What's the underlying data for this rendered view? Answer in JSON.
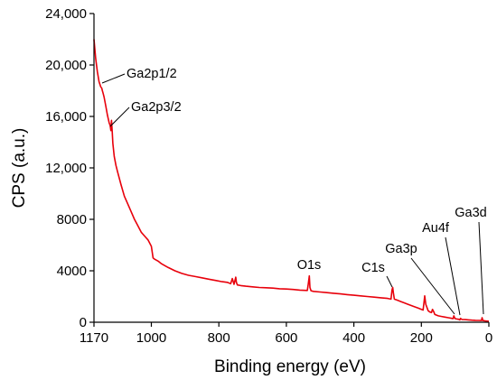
{
  "chart_data": {
    "type": "line",
    "title": "",
    "xlabel": "Binding energy (eV)",
    "ylabel": "CPS (a.u.)",
    "x_reversed": true,
    "xlim": [
      1170,
      0
    ],
    "ylim": [
      0,
      24000
    ],
    "grid": false,
    "legend": "none",
    "x_ticks": [
      {
        "value": 1170,
        "label": "1170"
      },
      {
        "value": 1000,
        "label": "1000"
      },
      {
        "value": 800,
        "label": "800"
      },
      {
        "value": 600,
        "label": "600"
      },
      {
        "value": 400,
        "label": "400"
      },
      {
        "value": 200,
        "label": "200"
      },
      {
        "value": 0,
        "label": "0"
      }
    ],
    "y_ticks": [
      {
        "value": 0,
        "label": "0"
      },
      {
        "value": 4000,
        "label": "4000"
      },
      {
        "value": 8000,
        "label": "8000"
      },
      {
        "value": 12000,
        "label": "12,000"
      },
      {
        "value": 16000,
        "label": "16,000"
      },
      {
        "value": 20000,
        "label": "20,000"
      },
      {
        "value": 24000,
        "label": "24,000"
      }
    ],
    "series": [
      {
        "color": "#e8000b",
        "x": [
          1170,
          1165,
          1160,
          1155,
          1150,
          1147,
          1145,
          1143,
          1140,
          1135,
          1130,
          1125,
          1122,
          1120,
          1118,
          1116,
          1114,
          1110,
          1105,
          1100,
          1090,
          1080,
          1070,
          1060,
          1050,
          1040,
          1030,
          1020,
          1010,
          1000,
          995,
          990,
          980,
          970,
          960,
          950,
          930,
          910,
          890,
          870,
          850,
          830,
          810,
          790,
          775,
          765,
          760,
          755,
          750,
          748,
          745,
          735,
          720,
          700,
          680,
          660,
          640,
          620,
          600,
          580,
          560,
          545,
          538,
          535,
          532,
          530,
          527,
          520,
          500,
          480,
          460,
          440,
          420,
          400,
          380,
          360,
          340,
          320,
          300,
          290,
          287,
          285,
          283,
          280,
          270,
          260,
          250,
          240,
          230,
          220,
          210,
          200,
          195,
          192,
          190,
          187,
          180,
          175,
          170,
          167,
          163,
          160,
          150,
          140,
          130,
          120,
          110,
          106,
          104,
          100,
          95,
          90,
          86,
          84,
          80,
          70,
          60,
          50,
          40,
          30,
          22,
          20,
          18,
          10,
          0
        ],
        "y": [
          22000,
          20500,
          19500,
          18700,
          18300,
          18200,
          18000,
          17800,
          17500,
          16800,
          16100,
          15500,
          15300,
          14900,
          15700,
          14800,
          13900,
          12900,
          12200,
          11700,
          10700,
          9800,
          9200,
          8600,
          8000,
          7500,
          7000,
          6700,
          6400,
          5900,
          5000,
          4900,
          4750,
          4550,
          4400,
          4250,
          4000,
          3800,
          3650,
          3550,
          3450,
          3350,
          3250,
          3150,
          3100,
          3000,
          3400,
          2950,
          3500,
          3100,
          2900,
          2850,
          2800,
          2750,
          2700,
          2680,
          2650,
          2600,
          2580,
          2550,
          2500,
          2480,
          2470,
          3000,
          3600,
          2700,
          2450,
          2400,
          2350,
          2300,
          2250,
          2200,
          2150,
          2100,
          2050,
          2000,
          1950,
          1900,
          1850,
          1800,
          2500,
          2700,
          2300,
          1800,
          1700,
          1600,
          1500,
          1400,
          1300,
          1200,
          1100,
          1000,
          950,
          1600,
          2050,
          1400,
          900,
          800,
          750,
          1000,
          800,
          600,
          500,
          450,
          400,
          350,
          300,
          280,
          500,
          280,
          250,
          230,
          180,
          300,
          220,
          200,
          180,
          160,
          150,
          140,
          130,
          350,
          130,
          100,
          80
        ]
      }
    ],
    "annotations": [
      {
        "text": "Ga2p1/2",
        "x": 1143
      },
      {
        "text": "Ga2p3/2",
        "x": 1118
      },
      {
        "text": "O1s",
        "x": 532
      },
      {
        "text": "C1s",
        "x": 285
      },
      {
        "text": "Ga3p",
        "x": 105
      },
      {
        "text": "Au4f",
        "x": 85
      },
      {
        "text": "Ga3d",
        "x": 20
      }
    ]
  }
}
